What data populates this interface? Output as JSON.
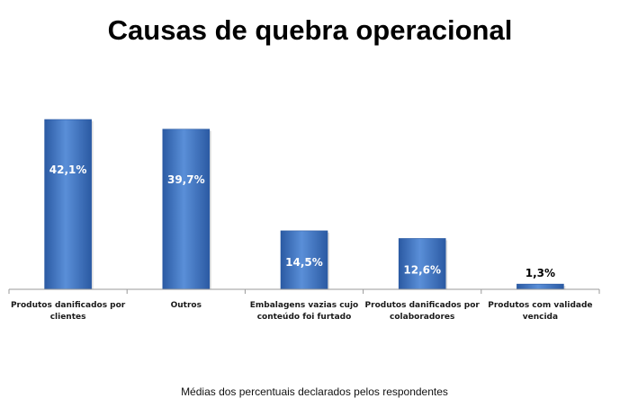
{
  "chart_data": {
    "type": "bar",
    "title": "Causas de quebra operacional",
    "caption": "Médias dos percentuais declarados pelos respondentes",
    "categories": [
      [
        "Produtos danificados por",
        "clientes"
      ],
      [
        "Outros"
      ],
      [
        "Embalagens vazias cujo",
        "conteúdo foi furtado"
      ],
      [
        "Produtos danificados por",
        "colaboradores"
      ],
      [
        "Produtos com validade",
        "vencida"
      ]
    ],
    "values": [
      42.1,
      39.7,
      14.5,
      12.6,
      1.3
    ],
    "data_labels": [
      "42,1%",
      "39,7%",
      "14,5%",
      "12,6%",
      "1,3%"
    ],
    "ylim": [
      0,
      47
    ],
    "grid": false,
    "bar_color": "#3f76c4",
    "bar_color_dark": "#2b5aa3",
    "bar_color_light": "#5a8fd8"
  }
}
